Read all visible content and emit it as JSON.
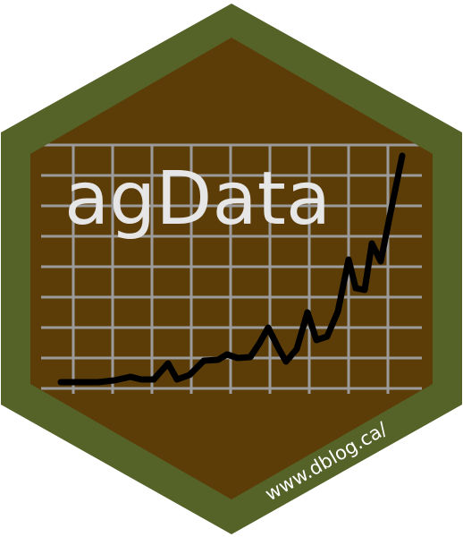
{
  "logo": {
    "title": "agData",
    "url": "www.dblog.ca/",
    "graphic": "rising-trend-line-on-grid",
    "colors": {
      "border": "#556228",
      "fill": "#5c3d08",
      "grid": "#9b9b9b",
      "line": "#000000",
      "title": "#e6e6e6",
      "url": "#ffffff"
    }
  }
}
